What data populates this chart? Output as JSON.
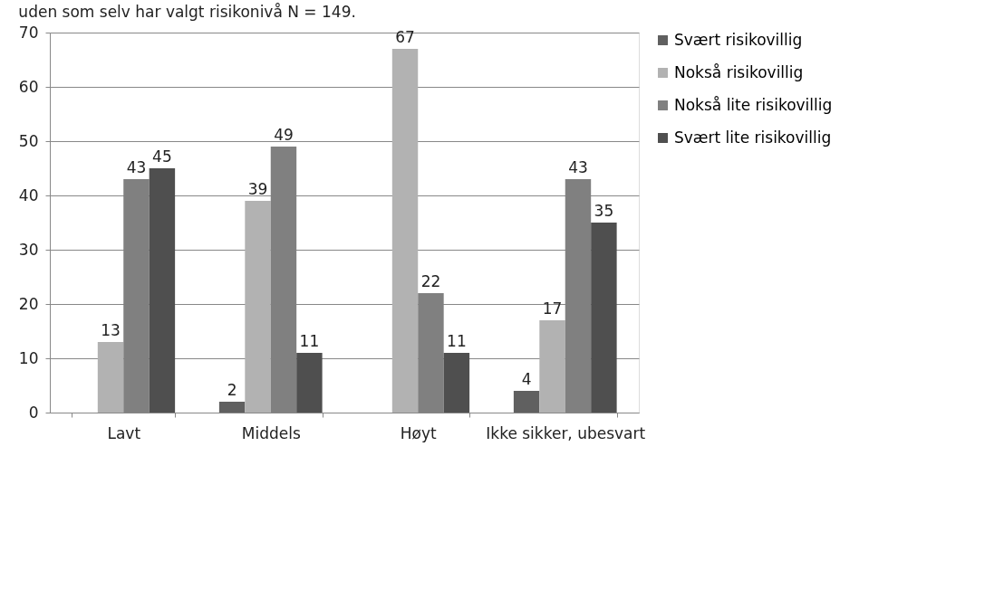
{
  "chart_data": {
    "type": "bar",
    "title": "uden som selv har valgt risikonivå N = 149.",
    "categories": [
      "Lavt",
      "Middels",
      "Høyt",
      "Ikke sikker, ubesvart"
    ],
    "series": [
      {
        "name": "Svært risikovillig",
        "color": "#606060",
        "values": [
          null,
          2,
          null,
          4
        ]
      },
      {
        "name": "Nokså risikovillig",
        "color": "#b2b2b2",
        "values": [
          13,
          39,
          67,
          17
        ]
      },
      {
        "name": "Nokså lite risikovillig",
        "color": "#808080",
        "values": [
          43,
          49,
          22,
          43
        ]
      },
      {
        "name": "Svært lite risikovillig",
        "color": "#4f4f4f",
        "values": [
          45,
          11,
          11,
          35
        ]
      }
    ],
    "ylim": [
      0,
      70
    ],
    "yticks": [
      0,
      10,
      20,
      30,
      40,
      50,
      60,
      70
    ],
    "grid": "y",
    "legend": "right",
    "data_labels": true
  }
}
